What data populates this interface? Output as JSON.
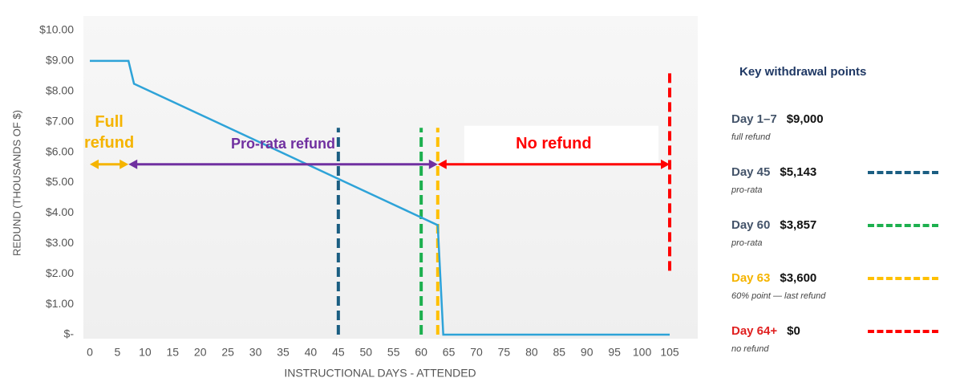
{
  "chart_data": {
    "type": "line",
    "y_label": "REDUND (THOUSANDS OF $)",
    "x_label": "INSTRUCTIONAL DAYS - ATTENDED",
    "x": [
      0,
      7,
      8,
      63,
      64,
      105
    ],
    "series": [
      {
        "color": "#2ea3d8",
        "values": [
          9,
          9,
          8.25,
          3.6,
          0,
          0
        ]
      }
    ],
    "xlim": [
      0,
      105
    ],
    "xticks": [
      0,
      5,
      10,
      15,
      20,
      25,
      30,
      35,
      40,
      45,
      50,
      55,
      60,
      65,
      70,
      75,
      80,
      85,
      90,
      95,
      100,
      105
    ],
    "ylim": [
      0,
      10
    ],
    "yticks": [
      {
        "value": 0,
        "label": "$-"
      },
      {
        "value": 1,
        "label": "$1.00"
      },
      {
        "value": 2,
        "label": "$2.00"
      },
      {
        "value": 3,
        "label": "$3.00"
      },
      {
        "value": 4,
        "label": "$4.00"
      },
      {
        "value": 5,
        "label": "$5.00"
      },
      {
        "value": 6,
        "label": "$6.00"
      },
      {
        "value": 7,
        "label": "$7.00"
      },
      {
        "value": 8,
        "label": "$8.00"
      },
      {
        "value": 9,
        "label": "$9.00"
      },
      {
        "value": 10,
        "label": "$10.00"
      }
    ],
    "grid": false,
    "vlines": [
      {
        "x": 45,
        "ymin": 0,
        "ymax": 6.8,
        "color": "#1b5e82"
      },
      {
        "x": 60,
        "ymin": 0,
        "ymax": 6.8,
        "color": "#1db04f"
      },
      {
        "x": 63,
        "ymin": 0,
        "ymax": 6.8,
        "color": "#ffc000"
      },
      {
        "x": 105,
        "ymin": 2.1,
        "ymax": 8.6,
        "color": "#ff0000"
      }
    ],
    "arrow_y": 5.6,
    "regions": [
      {
        "label": "Full refund",
        "start": 0,
        "end": 7,
        "color": "#f5b400"
      },
      {
        "label": "Pro-rata refund",
        "start": 7,
        "end": 63,
        "color": "#7030a0"
      },
      {
        "label": "No refund",
        "start": 63,
        "end": 105,
        "color": "#ff0000"
      }
    ],
    "key": {
      "title": "Key withdrawal points",
      "items": [
        {
          "label": "Day 1–7",
          "amount": "$9,000",
          "note": "full refund",
          "label_color": "#44546a"
        },
        {
          "label": "Day 45",
          "amount": "$5,143",
          "note": "pro-rata",
          "label_color": "#44546a",
          "line_color": "#1b5e82"
        },
        {
          "label": "Day 60",
          "amount": "$3,857",
          "note": "pro-rata",
          "label_color": "#44546a",
          "line_color": "#1db04f"
        },
        {
          "label": "Day 63",
          "amount": "$3,600",
          "note": "60% point — last refund",
          "label_color": "#f5b400",
          "line_color": "#ffc000"
        },
        {
          "label": "Day 64+",
          "amount": "$0",
          "note": "no refund",
          "label_color": "#e02020",
          "line_color": "#ff0000"
        }
      ]
    }
  }
}
